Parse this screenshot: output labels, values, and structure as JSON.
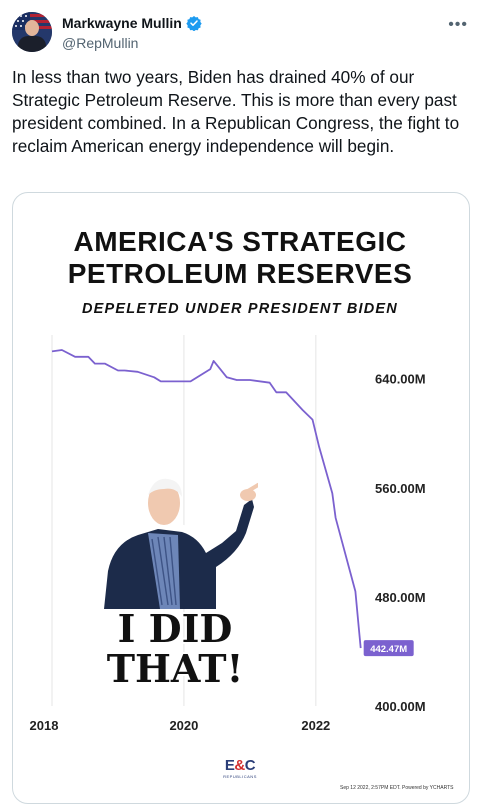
{
  "tweet": {
    "author_name": "Markwayne Mullin",
    "handle": "@RepMullin",
    "text": "In less than two years, Biden has drained 40% of our Strategic Petroleum Reserve. This is more than every past president combined. In a Republican Congress, the fight to reclaim American energy independence will begin."
  },
  "icons": {
    "verified": "verified-badge-icon",
    "more": "more-options-icon"
  },
  "colors": {
    "line": "#7b61cf",
    "badge_bg": "#7b61cf",
    "verified": "#1d9bf0"
  },
  "image": {
    "title_line1": "AMERICA'S STRATEGIC",
    "title_line2": "PETROLEUM RESERVES",
    "subtitle": "DEPELETED UNDER PRESIDENT BIDEN",
    "caption": "I DID THAT!",
    "logo_text": "E&C",
    "logo_sub": "REPUBLICANS",
    "footer": "Sep 12 2022, 2:57PM EDT. Powered by YCHARTS"
  },
  "chart_data": {
    "type": "line",
    "title": "AMERICA'S STRATEGIC PETROLEUM RESERVES",
    "subtitle": "DEPELETED UNDER PRESIDENT BIDEN",
    "xlabel": "",
    "ylabel": "",
    "x_ticks": [
      "2018",
      "2020",
      "2022"
    ],
    "y_ticks": [
      "400.00M",
      "480.00M",
      "560.00M",
      "640.00M"
    ],
    "ylim": [
      400,
      672
    ],
    "xlim": [
      2018,
      2022.7
    ],
    "last_value_label": "442.47M",
    "series": [
      {
        "name": "",
        "x": [
          2018.0,
          2018.15,
          2018.35,
          2018.55,
          2018.65,
          2018.8,
          2019.0,
          2019.1,
          2019.3,
          2019.55,
          2019.65,
          2019.95,
          2020.1,
          2020.4,
          2020.45,
          2020.55,
          2020.65,
          2020.8,
          2021.0,
          2021.3,
          2021.4,
          2021.55,
          2021.8,
          2021.95,
          2022.05,
          2022.15,
          2022.25,
          2022.3,
          2022.4,
          2022.5,
          2022.6,
          2022.65,
          2022.68
        ],
        "y": [
          660,
          661,
          656,
          656,
          651,
          651,
          646,
          646,
          645,
          641,
          638,
          638,
          638,
          647,
          653,
          647,
          641,
          639,
          639,
          637,
          630,
          630,
          617,
          610,
          590,
          573,
          556,
          538,
          520,
          502,
          484,
          458,
          442.47
        ]
      }
    ]
  }
}
